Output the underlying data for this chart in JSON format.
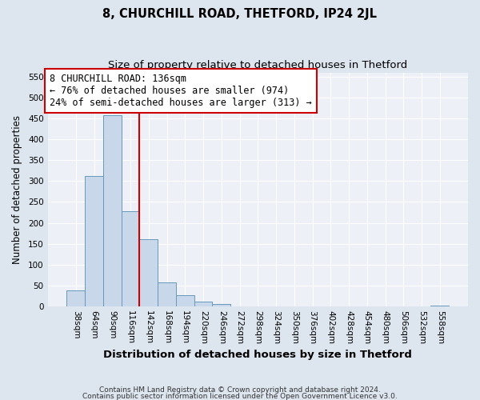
{
  "title": "8, CHURCHILL ROAD, THETFORD, IP24 2JL",
  "subtitle": "Size of property relative to detached houses in Thetford",
  "xlabel": "Distribution of detached houses by size in Thetford",
  "ylabel": "Number of detached properties",
  "footer_line1": "Contains HM Land Registry data © Crown copyright and database right 2024.",
  "footer_line2": "Contains public sector information licensed under the Open Government Licence v3.0.",
  "bin_labels": [
    "38sqm",
    "64sqm",
    "90sqm",
    "116sqm",
    "142sqm",
    "168sqm",
    "194sqm",
    "220sqm",
    "246sqm",
    "272sqm",
    "298sqm",
    "324sqm",
    "350sqm",
    "376sqm",
    "402sqm",
    "428sqm",
    "454sqm",
    "480sqm",
    "506sqm",
    "532sqm",
    "558sqm"
  ],
  "bar_values": [
    38,
    312,
    458,
    228,
    160,
    57,
    26,
    12,
    5,
    1,
    0,
    1,
    0,
    0,
    0,
    0,
    0,
    0,
    0,
    0,
    3
  ],
  "bar_color_fill": "#c8d8ea",
  "bar_color_edge": "#6699bb",
  "bar_width": 1.0,
  "vline_x_idx": 3.5,
  "vline_color": "#cc0000",
  "annotation_line1": "8 CHURCHILL ROAD: 136sqm",
  "annotation_line2": "← 76% of detached houses are smaller (974)",
  "annotation_line3": "24% of semi-detached houses are larger (313) →",
  "annotation_fontsize": 8.5,
  "ylim": [
    0,
    560
  ],
  "yticks": [
    0,
    50,
    100,
    150,
    200,
    250,
    300,
    350,
    400,
    450,
    500,
    550
  ],
  "fig_bg_color": "#dde5ee",
  "plot_bg_color": "#edf1f7",
  "grid_color": "#ffffff",
  "title_fontsize": 10.5,
  "subtitle_fontsize": 9.5,
  "xlabel_fontsize": 9.5,
  "ylabel_fontsize": 8.5,
  "footer_fontsize": 6.5,
  "tick_fontsize": 7.5
}
